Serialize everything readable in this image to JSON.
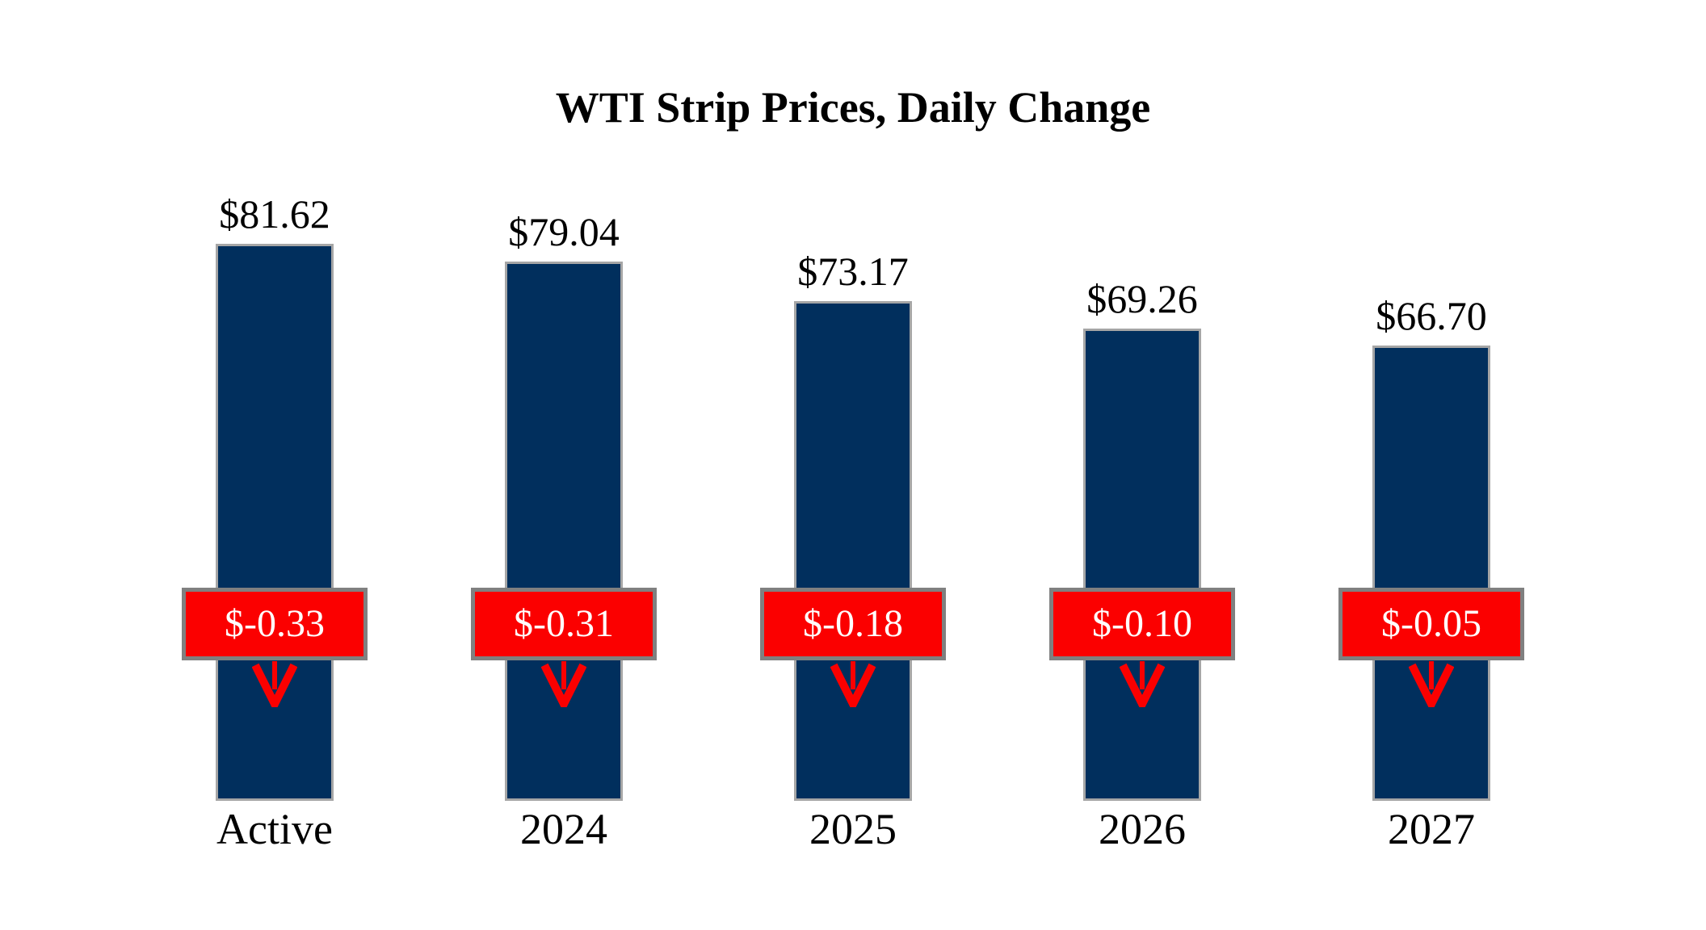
{
  "chart_data": {
    "type": "bar",
    "title": "WTI Strip Prices, Daily Change",
    "categories": [
      "Active",
      "2024",
      "2025",
      "2026",
      "2027"
    ],
    "series": [
      {
        "name": "strip_price",
        "values": [
          81.62,
          79.04,
          73.17,
          69.26,
          66.7
        ],
        "labels": [
          "$81.62",
          "$79.04",
          "$73.17",
          "$69.26",
          "$66.70"
        ]
      },
      {
        "name": "daily_change",
        "values": [
          -0.33,
          -0.31,
          -0.18,
          -0.1,
          -0.05
        ],
        "labels": [
          "$-0.33",
          "$-0.31",
          "$-0.18",
          "$-0.10",
          "$-0.05"
        ]
      }
    ],
    "ylim": [
      0,
      82
    ],
    "grid": false,
    "legend": "none",
    "axes_visible": false,
    "colors": {
      "bar": "#012f5d",
      "bar_border": "#a6a6a6",
      "change_box": "#fb0000",
      "change_box_border": "#808080",
      "change_text": "#ffffff",
      "arrow": "#fb0000",
      "label_text": "#000000",
      "background": "#ffffff"
    }
  }
}
